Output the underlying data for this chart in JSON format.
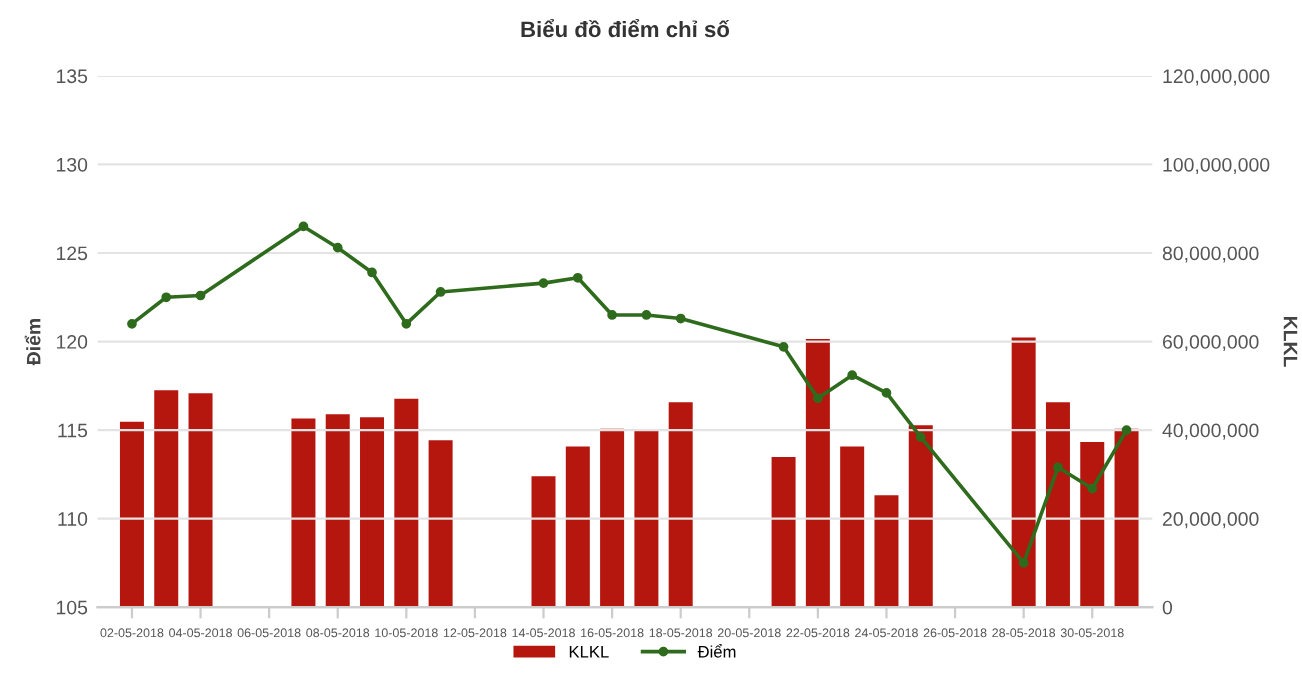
{
  "chart_data": {
    "type": "bar",
    "title": "Biểu đồ điểm chỉ số",
    "ylabel": "Điểm",
    "y2label": "KLKL",
    "x": [
      "2018-05-02",
      "2018-05-03",
      "2018-05-04",
      "2018-05-07",
      "2018-05-08",
      "2018-05-09",
      "2018-05-10",
      "2018-05-11",
      "2018-05-14",
      "2018-05-15",
      "2018-05-16",
      "2018-05-17",
      "2018-05-18",
      "2018-05-21",
      "2018-05-22",
      "2018-05-23",
      "2018-05-24",
      "2018-05-25",
      "2018-05-28",
      "2018-05-29",
      "2018-05-30",
      "2018-05-31"
    ],
    "series": [
      {
        "name": "KLKL",
        "axis": "y2",
        "color": "#b5170f",
        "values": [
          41900000,
          49000000,
          48300000,
          42600000,
          43600000,
          42900000,
          47100000,
          37700000,
          29600000,
          36300000,
          40300000,
          39900000,
          46300000,
          33900000,
          60600000,
          36300000,
          25300000,
          41100000,
          60900000,
          46300000,
          37300000,
          40300000
        ]
      },
      {
        "name": "Điểm",
        "type": "line",
        "axis": "y",
        "color": "#2e6b1c",
        "marker": "circle",
        "line_style": "solid",
        "values": [
          121.0,
          122.5,
          122.6,
          126.5,
          125.3,
          123.9,
          121.0,
          122.8,
          123.3,
          123.6,
          121.5,
          121.5,
          121.3,
          119.7,
          116.8,
          118.1,
          117.1,
          114.6,
          107.5,
          112.9,
          111.7,
          115.0
        ]
      }
    ],
    "xlim": [
      "2018-05-01",
      "2018-05-31T18:00"
    ],
    "xticks": [
      {
        "value": "2018-05-02",
        "label": "02-05-2018"
      },
      {
        "value": "2018-05-04",
        "label": "04-05-2018"
      },
      {
        "value": "2018-05-06",
        "label": "06-05-2018"
      },
      {
        "value": "2018-05-08",
        "label": "08-05-2018"
      },
      {
        "value": "2018-05-10",
        "label": "10-05-2018"
      },
      {
        "value": "2018-05-12",
        "label": "12-05-2018"
      },
      {
        "value": "2018-05-14",
        "label": "14-05-2018"
      },
      {
        "value": "2018-05-16",
        "label": "16-05-2018"
      },
      {
        "value": "2018-05-18",
        "label": "18-05-2018"
      },
      {
        "value": "2018-05-20",
        "label": "20-05-2018"
      },
      {
        "value": "2018-05-22",
        "label": "22-05-2018"
      },
      {
        "value": "2018-05-24",
        "label": "24-05-2018"
      },
      {
        "value": "2018-05-26",
        "label": "26-05-2018"
      },
      {
        "value": "2018-05-28",
        "label": "28-05-2018"
      },
      {
        "value": "2018-05-30",
        "label": "30-05-2018"
      }
    ],
    "ylim": [
      105,
      135
    ],
    "yticks": [
      105,
      110,
      115,
      120,
      125,
      130,
      135
    ],
    "y2lim": [
      0,
      120000000
    ],
    "y2ticks": [
      0,
      {
        "value": 20000000,
        "label": "20,000,000"
      },
      {
        "value": 40000000,
        "label": "40,000,000"
      },
      {
        "value": 60000000,
        "label": "60,000,000"
      },
      {
        "value": 80000000,
        "label": "80,000,000"
      },
      {
        "value": 100000000,
        "label": "100,000,000"
      },
      {
        "value": 120000000,
        "label": "120,000,000"
      }
    ],
    "grid": "y",
    "legend": "bottom"
  }
}
